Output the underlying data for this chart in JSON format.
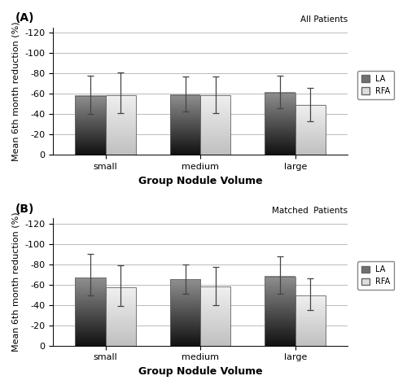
{
  "panel_A": {
    "label": "(A)",
    "subtitle": "All Patients",
    "categories": [
      "small",
      "medium",
      "large"
    ],
    "LA_values": [
      58,
      59,
      61
    ],
    "RFA_values": [
      59,
      59,
      49
    ],
    "LA_errors_up": [
      20,
      18,
      17
    ],
    "LA_errors_dn": [
      18,
      16,
      15
    ],
    "RFA_errors_up": [
      22,
      18,
      17
    ],
    "RFA_errors_dn": [
      18,
      18,
      16
    ]
  },
  "panel_B": {
    "label": "(B)",
    "subtitle": "Matched  Patients",
    "categories": [
      "small",
      "medium",
      "large"
    ],
    "LA_values": [
      67,
      65,
      68
    ],
    "RFA_values": [
      57,
      58,
      49
    ],
    "LA_errors_up": [
      23,
      15,
      20
    ],
    "LA_errors_dn": [
      18,
      14,
      17
    ],
    "RFA_errors_up": [
      22,
      19,
      17
    ],
    "RFA_errors_dn": [
      18,
      18,
      14
    ]
  },
  "ylabel": "Mean 6th month reduction (%)",
  "xlabel": "Group Nodule Volume",
  "bar_width": 0.32,
  "background_color": "#ffffff",
  "grid_color": "#b0b0b0",
  "legend_LA": "LA",
  "legend_RFA": "RFA",
  "ytick_vals": [
    0,
    20,
    40,
    60,
    80,
    100,
    120
  ],
  "ytick_labels": [
    "0",
    "-20",
    "-40",
    "-60",
    "-80",
    "-100",
    "-120"
  ],
  "ylim_max": 125
}
